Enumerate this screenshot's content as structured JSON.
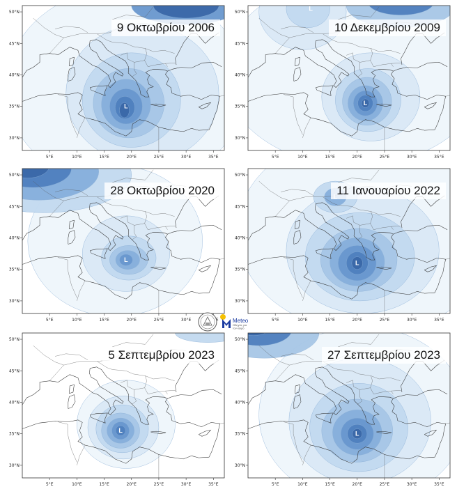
{
  "panels": [
    {
      "title": "9 Οκτωβρίου 2006",
      "low_label": "L",
      "lat_ticks": [
        "50°N",
        "45°N",
        "40°N",
        "35°N",
        "30°N"
      ],
      "lon_ticks": [
        "5°E",
        "10°E",
        "15°E",
        "20°E",
        "25°E",
        "30°E",
        "35°E"
      ],
      "cyclone_center": {
        "lon": 19.0,
        "lat": 35.0
      },
      "low_labels": [
        {
          "lon": 19.0,
          "lat": 35.0
        }
      ]
    },
    {
      "title": "10 Δεκεμβρίου 2009",
      "low_label": "L",
      "lat_ticks": [
        "50°N",
        "45°N",
        "40°N",
        "35°N",
        "30°N"
      ],
      "lon_ticks": [
        "5°E",
        "10°E",
        "15°E",
        "20°E",
        "25°E",
        "30°E",
        "35°E"
      ],
      "cyclone_center": {
        "lon": 21.5,
        "lat": 35.5
      },
      "low_labels": [
        {
          "lon": 21.5,
          "lat": 35.5
        },
        {
          "lon": 11.5,
          "lat": 50.5
        }
      ]
    },
    {
      "title": "28 Οκτωβρίου 2020",
      "low_label": "L",
      "lat_ticks": [
        "50°N",
        "45°N",
        "40°N",
        "35°N",
        "30°N"
      ],
      "lon_ticks": [
        "5°E",
        "10°E",
        "15°E",
        "20°E",
        "25°E",
        "30°E",
        "35°E"
      ],
      "cyclone_center": {
        "lon": 19.0,
        "lat": 36.5
      },
      "low_labels": [
        {
          "lon": 19.0,
          "lat": 36.5
        }
      ]
    },
    {
      "title": "11 Ιανουαρίου 2022",
      "low_label": "L",
      "lat_ticks": [
        "50°N",
        "45°N",
        "40°N",
        "35°N",
        "30°N"
      ],
      "lon_ticks": [
        "5°E",
        "10°E",
        "15°E",
        "20°E",
        "25°E",
        "30°E",
        "35°E"
      ],
      "cyclone_center": {
        "lon": 20.0,
        "lat": 36.0
      },
      "low_labels": [
        {
          "lon": 20.0,
          "lat": 36.0
        },
        {
          "lon": 16.0,
          "lat": 46.5
        }
      ]
    },
    {
      "title": "5 Σεπτεμβρίου 2023",
      "low_label": "L",
      "lat_ticks": [
        "50°N",
        "45°N",
        "40°N",
        "35°N",
        "30°N"
      ],
      "lon_ticks": [
        "5°E",
        "10°E",
        "15°E",
        "20°E",
        "25°E",
        "30°E",
        "35°E"
      ],
      "cyclone_center": {
        "lon": 18.0,
        "lat": 35.5
      },
      "low_labels": [
        {
          "lon": 18.0,
          "lat": 35.5
        }
      ]
    },
    {
      "title": "27 Σεπτεμβρίου 2023",
      "low_label": "L",
      "lat_ticks": [
        "50°N",
        "45°N",
        "40°N",
        "35°N",
        "30°N"
      ],
      "lon_ticks": [
        "5°E",
        "10°E",
        "15°E",
        "20°E",
        "25°E",
        "30°E",
        "35°E"
      ],
      "cyclone_center": {
        "lon": 20.0,
        "lat": 35.0
      },
      "low_labels": [
        {
          "lon": 20.0,
          "lat": 35.0
        }
      ]
    }
  ],
  "logos": {
    "meteo_name": "Meteo",
    "meteo_tagline_1": "Οδηγός για",
    "meteo_tagline_2": "τον καιρό"
  },
  "colors": {
    "shade_levels": [
      "#eef5fb",
      "#d9e8f6",
      "#c2d9ef",
      "#a6c6e6",
      "#86afdb",
      "#6897cd",
      "#4f7fbe",
      "#3a67a8"
    ],
    "coastline": "#333333",
    "frame": "#333333",
    "meteo_blue": "#1a3aa0",
    "meteo_yellow": "#f5c000"
  }
}
